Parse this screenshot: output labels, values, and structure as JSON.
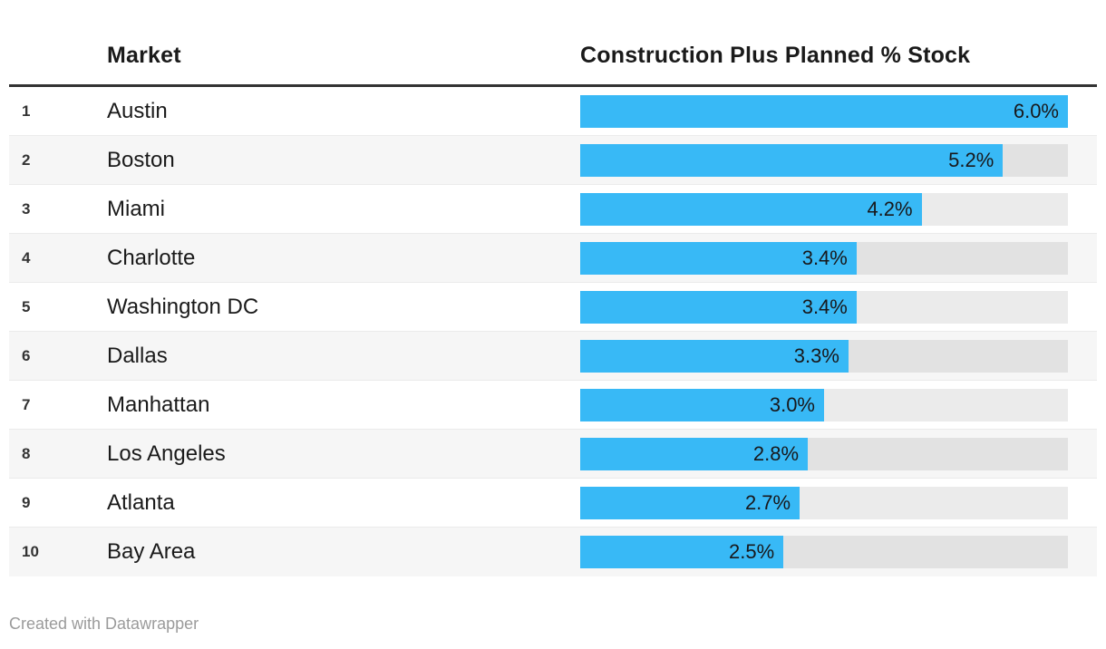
{
  "header": {
    "market_label": "Market",
    "value_label": "Construction Plus Planned % Stock"
  },
  "footer": {
    "credit": "Created with Datawrapper"
  },
  "colors": {
    "bar_fill": "#38b9f6",
    "bar_track": "rgba(0,0,0,0.08)",
    "row_stripe": "#f6f6f6",
    "header_rule": "#333333",
    "text": "#1a1a1a",
    "footer_text": "#9b9b9b"
  },
  "chart_data": {
    "type": "bar",
    "orientation": "horizontal",
    "title": "Construction Plus Planned % Stock",
    "xlabel": "Construction Plus Planned % Stock",
    "ylabel": "Market",
    "xlim": [
      0,
      6.0
    ],
    "grid": false,
    "legend": false,
    "ranks": [
      1,
      2,
      3,
      4,
      5,
      6,
      7,
      8,
      9,
      10
    ],
    "categories": [
      "Austin",
      "Boston",
      "Miami",
      "Charlotte",
      "Washington DC",
      "Dallas",
      "Manhattan",
      "Los Angeles",
      "Atlanta",
      "Bay Area"
    ],
    "values": [
      6.0,
      5.2,
      4.2,
      3.4,
      3.4,
      3.3,
      3.0,
      2.8,
      2.7,
      2.5
    ],
    "value_labels": [
      "6.0%",
      "5.2%",
      "4.2%",
      "3.4%",
      "3.4%",
      "3.3%",
      "3.0%",
      "2.8%",
      "2.7%",
      "2.5%"
    ]
  }
}
